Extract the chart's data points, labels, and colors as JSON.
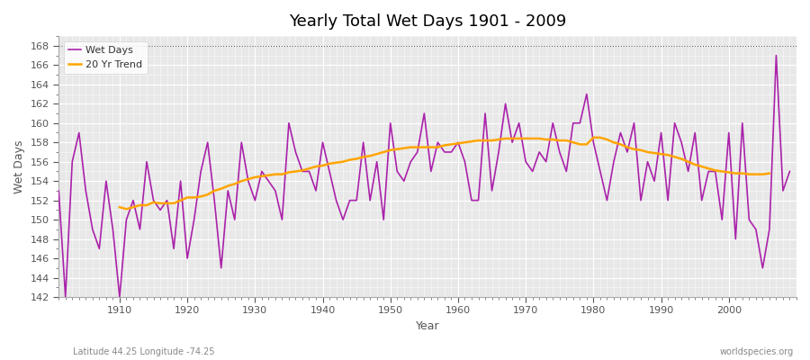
{
  "title": "Yearly Total Wet Days 1901 - 2009",
  "xlabel": "Year",
  "ylabel": "Wet Days",
  "lat_lon_label": "Latitude 44.25 Longitude -74.25",
  "watermark": "worldspecies.org",
  "wet_days_color": "#aa22aa",
  "trend_color": "#ffa500",
  "background_color": "#ffffff",
  "plot_bg_color": "#e8e8e8",
  "grid_color": "#ffffff",
  "ylim": [
    142,
    169
  ],
  "yticks": [
    142,
    144,
    146,
    148,
    150,
    152,
    154,
    156,
    158,
    160,
    162,
    164,
    166,
    168
  ],
  "xlim": [
    1901,
    2010
  ],
  "xticks": [
    1910,
    1920,
    1930,
    1940,
    1950,
    1960,
    1970,
    1980,
    1990,
    2000
  ],
  "years": [
    1901,
    1902,
    1903,
    1904,
    1905,
    1906,
    1907,
    1908,
    1909,
    1910,
    1911,
    1912,
    1913,
    1914,
    1915,
    1916,
    1917,
    1918,
    1919,
    1920,
    1921,
    1922,
    1923,
    1924,
    1925,
    1926,
    1927,
    1928,
    1929,
    1930,
    1931,
    1932,
    1933,
    1934,
    1935,
    1936,
    1937,
    1938,
    1939,
    1940,
    1941,
    1942,
    1943,
    1944,
    1945,
    1946,
    1947,
    1948,
    1949,
    1950,
    1951,
    1952,
    1953,
    1954,
    1955,
    1956,
    1957,
    1958,
    1959,
    1960,
    1961,
    1962,
    1963,
    1964,
    1965,
    1966,
    1967,
    1968,
    1969,
    1970,
    1971,
    1972,
    1973,
    1974,
    1975,
    1976,
    1977,
    1978,
    1979,
    1980,
    1981,
    1982,
    1983,
    1984,
    1985,
    1986,
    1987,
    1988,
    1989,
    1990,
    1991,
    1992,
    1993,
    1994,
    1995,
    1996,
    1997,
    1998,
    1999,
    2000,
    2001,
    2002,
    2003,
    2004,
    2005,
    2006,
    2007,
    2008,
    2009
  ],
  "wet_days": [
    153,
    142,
    156,
    159,
    153,
    149,
    147,
    154,
    149,
    142,
    150,
    152,
    149,
    156,
    152,
    151,
    152,
    147,
    154,
    146,
    150,
    155,
    158,
    152,
    145,
    153,
    150,
    158,
    154,
    152,
    155,
    154,
    153,
    150,
    160,
    157,
    155,
    155,
    153,
    158,
    155,
    152,
    150,
    152,
    152,
    158,
    152,
    156,
    150,
    160,
    155,
    154,
    156,
    157,
    161,
    155,
    158,
    157,
    157,
    158,
    156,
    152,
    152,
    161,
    153,
    157,
    162,
    158,
    160,
    156,
    155,
    157,
    156,
    160,
    157,
    155,
    160,
    160,
    163,
    158,
    155,
    152,
    156,
    159,
    157,
    160,
    152,
    156,
    154,
    159,
    152,
    160,
    158,
    155,
    159,
    152,
    155,
    155,
    150,
    159,
    148,
    160,
    150,
    149,
    145,
    149,
    167,
    153,
    155
  ],
  "trend": [
    null,
    null,
    null,
    null,
    null,
    null,
    null,
    null,
    null,
    151.3,
    151.1,
    151.3,
    151.5,
    151.5,
    151.8,
    151.7,
    151.7,
    151.7,
    152.0,
    152.3,
    152.3,
    152.4,
    152.6,
    153.0,
    153.2,
    153.5,
    153.7,
    154.0,
    154.2,
    154.4,
    154.5,
    154.6,
    154.7,
    154.7,
    154.9,
    155.0,
    155.1,
    155.3,
    155.5,
    155.6,
    155.8,
    155.9,
    156.0,
    156.2,
    156.3,
    156.5,
    156.6,
    156.8,
    157.0,
    157.2,
    157.3,
    157.4,
    157.5,
    157.5,
    157.5,
    157.5,
    157.5,
    157.7,
    157.8,
    157.9,
    158.0,
    158.1,
    158.2,
    158.2,
    158.2,
    158.3,
    158.4,
    158.4,
    158.4,
    158.4,
    158.4,
    158.4,
    158.3,
    158.3,
    158.2,
    158.2,
    158.0,
    157.8,
    157.8,
    158.5,
    158.5,
    158.3,
    158.0,
    157.8,
    157.5,
    157.3,
    157.2,
    157.0,
    156.9,
    156.8,
    156.7,
    156.5,
    156.3,
    156.0,
    155.7,
    155.5,
    155.3,
    155.1,
    155.0,
    154.9,
    154.8,
    154.8,
    154.7,
    154.7,
    154.7,
    154.8,
    null,
    null,
    null
  ]
}
